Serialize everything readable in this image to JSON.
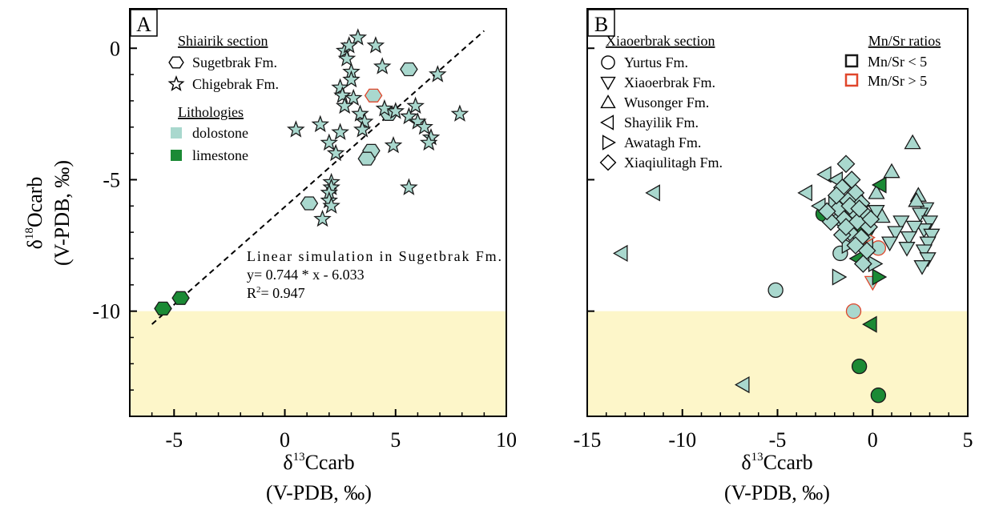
{
  "colors": {
    "dolostone": "#a9d8ce",
    "limestone": "#1b8a35",
    "mn_low_edge": "#1a1a1a",
    "mn_high_edge": "#e0462b",
    "highlight_band": "#fdf6c9"
  },
  "chart_data": [
    {
      "panel": "A",
      "type": "scatter",
      "xlabel": "δ13Ccarb",
      "xlabel_unit": "(V-PDB, ‰)",
      "ylabel": "δ18Ocarb",
      "ylabel_unit": "(V-PDB, ‰)",
      "xlim": [
        -7,
        10
      ],
      "ylim": [
        -14,
        1.5
      ],
      "xticks": [
        -5,
        0,
        5,
        10
      ],
      "yticks": [
        0,
        -5,
        -10
      ],
      "grid": false,
      "band": {
        "y_from": -14,
        "y_to": -10
      },
      "legend": {
        "title": "Shiairik section",
        "entries": [
          {
            "label": "Sugetbrak Fm.",
            "marker": "hexagon"
          },
          {
            "label": "Chigebrak Fm.",
            "marker": "star"
          }
        ],
        "lith_title": "Lithologies",
        "lith_entries": [
          {
            "label": "dolostone",
            "key": "dolostone"
          },
          {
            "label": "limestone",
            "key": "limestone"
          }
        ]
      },
      "fit": {
        "label": "Linear simulation in Sugetbrak Fm.",
        "equation": "y= 0.744 * x - 6.033",
        "r2_prefix": "R",
        "r2_sup": "2",
        "r2_value": "= 0.947",
        "slope": 0.744,
        "intercept": -6.033,
        "x_range": [
          -6,
          9
        ]
      },
      "series": [
        {
          "name": "Sugetbrak Fm.",
          "marker": "hexagon",
          "points": [
            [
              5.6,
              -0.8,
              "dolostone",
              "low"
            ],
            [
              4.0,
              -1.8,
              "dolostone",
              "high"
            ],
            [
              4.7,
              -2.5,
              "dolostone",
              "low"
            ],
            [
              3.9,
              -3.9,
              "dolostone",
              "low"
            ],
            [
              3.7,
              -4.2,
              "dolostone",
              "low"
            ],
            [
              1.1,
              -5.9,
              "dolostone",
              "low"
            ],
            [
              -5.5,
              -9.9,
              "limestone",
              "low"
            ],
            [
              -4.7,
              -9.5,
              "limestone",
              "low"
            ]
          ]
        },
        {
          "name": "Chigebrak Fm.",
          "marker": "star",
          "points": [
            [
              3.3,
              0.4,
              "dolostone",
              "low"
            ],
            [
              4.1,
              0.1,
              "dolostone",
              "low"
            ],
            [
              2.7,
              -0.1,
              "dolostone",
              "low"
            ],
            [
              2.9,
              0.1,
              "dolostone",
              "low"
            ],
            [
              2.8,
              -0.4,
              "dolostone",
              "low"
            ],
            [
              4.4,
              -0.7,
              "dolostone",
              "low"
            ],
            [
              3.0,
              -0.9,
              "dolostone",
              "low"
            ],
            [
              3.0,
              -1.2,
              "dolostone",
              "low"
            ],
            [
              6.9,
              -1.0,
              "dolostone",
              "low"
            ],
            [
              2.5,
              -1.5,
              "dolostone",
              "low"
            ],
            [
              2.6,
              -1.8,
              "dolostone",
              "low"
            ],
            [
              3.1,
              -1.9,
              "dolostone",
              "low"
            ],
            [
              2.7,
              -2.2,
              "dolostone",
              "low"
            ],
            [
              4.5,
              -2.3,
              "dolostone",
              "low"
            ],
            [
              5.0,
              -2.4,
              "dolostone",
              "low"
            ],
            [
              5.9,
              -2.2,
              "dolostone",
              "low"
            ],
            [
              3.4,
              -2.5,
              "dolostone",
              "low"
            ],
            [
              5.6,
              -2.6,
              "dolostone",
              "low"
            ],
            [
              6.0,
              -2.8,
              "dolostone",
              "low"
            ],
            [
              7.9,
              -2.5,
              "dolostone",
              "low"
            ],
            [
              3.6,
              -2.8,
              "dolostone",
              "low"
            ],
            [
              1.6,
              -2.9,
              "dolostone",
              "low"
            ],
            [
              3.5,
              -3.1,
              "dolostone",
              "low"
            ],
            [
              6.3,
              -3.0,
              "dolostone",
              "low"
            ],
            [
              0.5,
              -3.1,
              "dolostone",
              "low"
            ],
            [
              2.5,
              -3.2,
              "dolostone",
              "low"
            ],
            [
              6.6,
              -3.4,
              "dolostone",
              "low"
            ],
            [
              2.0,
              -3.6,
              "dolostone",
              "low"
            ],
            [
              6.5,
              -3.6,
              "dolostone",
              "low"
            ],
            [
              4.9,
              -3.7,
              "dolostone",
              "low"
            ],
            [
              2.3,
              -4.0,
              "dolostone",
              "low"
            ],
            [
              2.1,
              -5.1,
              "dolostone",
              "low"
            ],
            [
              2.1,
              -5.3,
              "dolostone",
              "low"
            ],
            [
              5.6,
              -5.3,
              "dolostone",
              "low"
            ],
            [
              2.0,
              -5.5,
              "dolostone",
              "low"
            ],
            [
              2.0,
              -5.8,
              "dolostone",
              "low"
            ],
            [
              2.1,
              -6.0,
              "dolostone",
              "low"
            ],
            [
              1.7,
              -6.5,
              "dolostone",
              "low"
            ]
          ]
        }
      ]
    },
    {
      "panel": "B",
      "type": "scatter",
      "xlabel": "δ13Ccarb",
      "xlabel_unit": "(V-PDB, ‰)",
      "xlim": [
        -15,
        5
      ],
      "ylim": [
        -14,
        1.5
      ],
      "xticks": [
        -15,
        -10,
        -5,
        0,
        5
      ],
      "grid": false,
      "band": {
        "y_from": -14,
        "y_to": -10
      },
      "legend": {
        "title": "Xiaoerbrak section",
        "entries": [
          {
            "label": "Yurtus Fm.",
            "marker": "circle"
          },
          {
            "label": "Xiaoerbrak Fm.",
            "marker": "triangle-down"
          },
          {
            "label": "Wusonger Fm.",
            "marker": "triangle-up"
          },
          {
            "label": "Shayilik Fm.",
            "marker": "triangle-left"
          },
          {
            "label": "Awatagh Fm.",
            "marker": "triangle-right"
          },
          {
            "label": "Xiaqiulitagh Fm.",
            "marker": "diamond"
          }
        ],
        "mn_title": "Mn/Sr ratios",
        "mn_entries": [
          {
            "label": "Mn/Sr < 5",
            "key": "low"
          },
          {
            "label": "Mn/Sr > 5",
            "key": "high"
          }
        ]
      },
      "series": [
        {
          "name": "Yurtus Fm.",
          "marker": "circle",
          "points": [
            [
              -5.1,
              -9.2,
              "dolostone",
              "low"
            ],
            [
              -1.7,
              -7.8,
              "dolostone",
              "low"
            ],
            [
              -1.0,
              -10.0,
              "dolostone",
              "high"
            ],
            [
              -0.7,
              -12.1,
              "limestone",
              "low"
            ],
            [
              0.3,
              -13.2,
              "limestone",
              "low"
            ],
            [
              -2.6,
              -6.3,
              "limestone",
              "low"
            ],
            [
              0.3,
              -7.6,
              "dolostone",
              "high"
            ],
            [
              -0.3,
              -6.5,
              "limestone",
              "low"
            ]
          ]
        },
        {
          "name": "Xiaoerbrak Fm.",
          "marker": "triangle-down",
          "points": [
            [
              2.8,
              -6.1,
              "dolostone",
              "low"
            ],
            [
              2.5,
              -6.3,
              "dolostone",
              "low"
            ],
            [
              3.0,
              -6.6,
              "dolostone",
              "low"
            ],
            [
              2.7,
              -6.9,
              "dolostone",
              "low"
            ],
            [
              3.1,
              -7.1,
              "dolostone",
              "low"
            ],
            [
              2.9,
              -7.4,
              "dolostone",
              "low"
            ],
            [
              2.7,
              -7.7,
              "dolostone",
              "low"
            ],
            [
              2.9,
              -8.0,
              "dolostone",
              "low"
            ],
            [
              2.2,
              -6.8,
              "dolostone",
              "low"
            ],
            [
              1.9,
              -7.2,
              "dolostone",
              "low"
            ],
            [
              1.5,
              -6.6,
              "dolostone",
              "low"
            ],
            [
              1.2,
              -7.0,
              "dolostone",
              "low"
            ],
            [
              2.6,
              -8.3,
              "dolostone",
              "low"
            ],
            [
              1.8,
              -7.6,
              "dolostone",
              "low"
            ],
            [
              0.9,
              -7.4,
              "dolostone",
              "low"
            ],
            [
              0.2,
              -6.2,
              "dolostone",
              "low"
            ],
            [
              0.0,
              -8.9,
              "dolostone",
              "high"
            ],
            [
              -0.2,
              -7.0,
              "limestone",
              "low"
            ]
          ]
        },
        {
          "name": "Wusonger Fm.",
          "marker": "triangle-up",
          "points": [
            [
              2.1,
              -3.6,
              "dolostone",
              "low"
            ],
            [
              1.0,
              -4.7,
              "dolostone",
              "low"
            ],
            [
              2.4,
              -5.6,
              "dolostone",
              "low"
            ],
            [
              2.3,
              -5.8,
              "dolostone",
              "low"
            ],
            [
              -0.9,
              -6.0,
              "dolostone",
              "low"
            ],
            [
              0.2,
              -5.5,
              "dolostone",
              "low"
            ],
            [
              -1.1,
              -6.8,
              "dolostone",
              "high"
            ],
            [
              0.5,
              -6.4,
              "dolostone",
              "low"
            ],
            [
              -0.6,
              -5.8,
              "limestone",
              "low"
            ]
          ]
        },
        {
          "name": "Shayilik Fm.",
          "marker": "triangle-left",
          "points": [
            [
              -11.5,
              -5.5,
              "dolostone",
              "low"
            ],
            [
              -13.2,
              -7.8,
              "dolostone",
              "low"
            ],
            [
              -6.8,
              -12.8,
              "dolostone",
              "low"
            ],
            [
              -0.1,
              -10.5,
              "limestone",
              "low"
            ],
            [
              -3.5,
              -5.5,
              "dolostone",
              "low"
            ],
            [
              -2.8,
              -6.0,
              "dolostone",
              "low"
            ],
            [
              -2.5,
              -4.8,
              "dolostone",
              "low"
            ],
            [
              -1.9,
              -5.0,
              "dolostone",
              "low"
            ],
            [
              -0.9,
              -6.6,
              "dolostone",
              "low"
            ],
            [
              -0.3,
              -7.5,
              "dolostone",
              "low"
            ],
            [
              -0.8,
              -8.0,
              "limestone",
              "low"
            ],
            [
              0.4,
              -5.2,
              "limestone",
              "low"
            ],
            [
              -2.0,
              -6.5,
              "dolostone",
              "low"
            ]
          ]
        },
        {
          "name": "Awatagh Fm.",
          "marker": "triangle-right",
          "points": [
            [
              -1.8,
              -8.7,
              "dolostone",
              "low"
            ],
            [
              0.3,
              -8.7,
              "limestone",
              "low"
            ],
            [
              -0.3,
              -7.2,
              "dolostone",
              "high"
            ],
            [
              -2.0,
              -5.9,
              "dolostone",
              "low"
            ],
            [
              -0.5,
              -6.9,
              "limestone",
              "low"
            ],
            [
              -1.3,
              -7.5,
              "dolostone",
              "low"
            ],
            [
              0.1,
              -8.2,
              "dolostone",
              "low"
            ]
          ]
        },
        {
          "name": "Xiaqiulitagh Fm.",
          "marker": "diamond",
          "points": [
            [
              -1.4,
              -4.4,
              "dolostone",
              "low"
            ],
            [
              -1.1,
              -5.0,
              "dolostone",
              "low"
            ],
            [
              -1.6,
              -5.3,
              "dolostone",
              "low"
            ],
            [
              -0.9,
              -5.5,
              "dolostone",
              "low"
            ],
            [
              -1.3,
              -5.8,
              "dolostone",
              "low"
            ],
            [
              -0.6,
              -5.9,
              "dolostone",
              "low"
            ],
            [
              -1.8,
              -6.1,
              "dolostone",
              "low"
            ],
            [
              -1.0,
              -6.2,
              "dolostone",
              "low"
            ],
            [
              -0.4,
              -6.3,
              "dolostone",
              "low"
            ],
            [
              -1.5,
              -6.5,
              "dolostone",
              "low"
            ],
            [
              -0.8,
              -6.6,
              "dolostone",
              "low"
            ],
            [
              -0.2,
              -6.8,
              "dolostone",
              "low"
            ],
            [
              -1.2,
              -7.0,
              "dolostone",
              "low"
            ],
            [
              -0.6,
              -7.2,
              "dolostone",
              "low"
            ],
            [
              -1.6,
              -7.1,
              "dolostone",
              "low"
            ],
            [
              -0.9,
              -7.5,
              "dolostone",
              "low"
            ],
            [
              -0.3,
              -7.7,
              "dolostone",
              "low"
            ],
            [
              -2.2,
              -6.6,
              "dolostone",
              "low"
            ],
            [
              -2.4,
              -6.2,
              "dolostone",
              "low"
            ],
            [
              -1.9,
              -5.6,
              "dolostone",
              "low"
            ],
            [
              -0.5,
              -8.2,
              "dolostone",
              "low"
            ],
            [
              -1.2,
              -6.0,
              "dolostone",
              "low"
            ],
            [
              -0.7,
              -6.1,
              "dolostone",
              "low"
            ],
            [
              -1.4,
              -6.8,
              "dolostone",
              "low"
            ],
            [
              -0.1,
              -6.5,
              "dolostone",
              "low"
            ]
          ]
        }
      ]
    }
  ]
}
